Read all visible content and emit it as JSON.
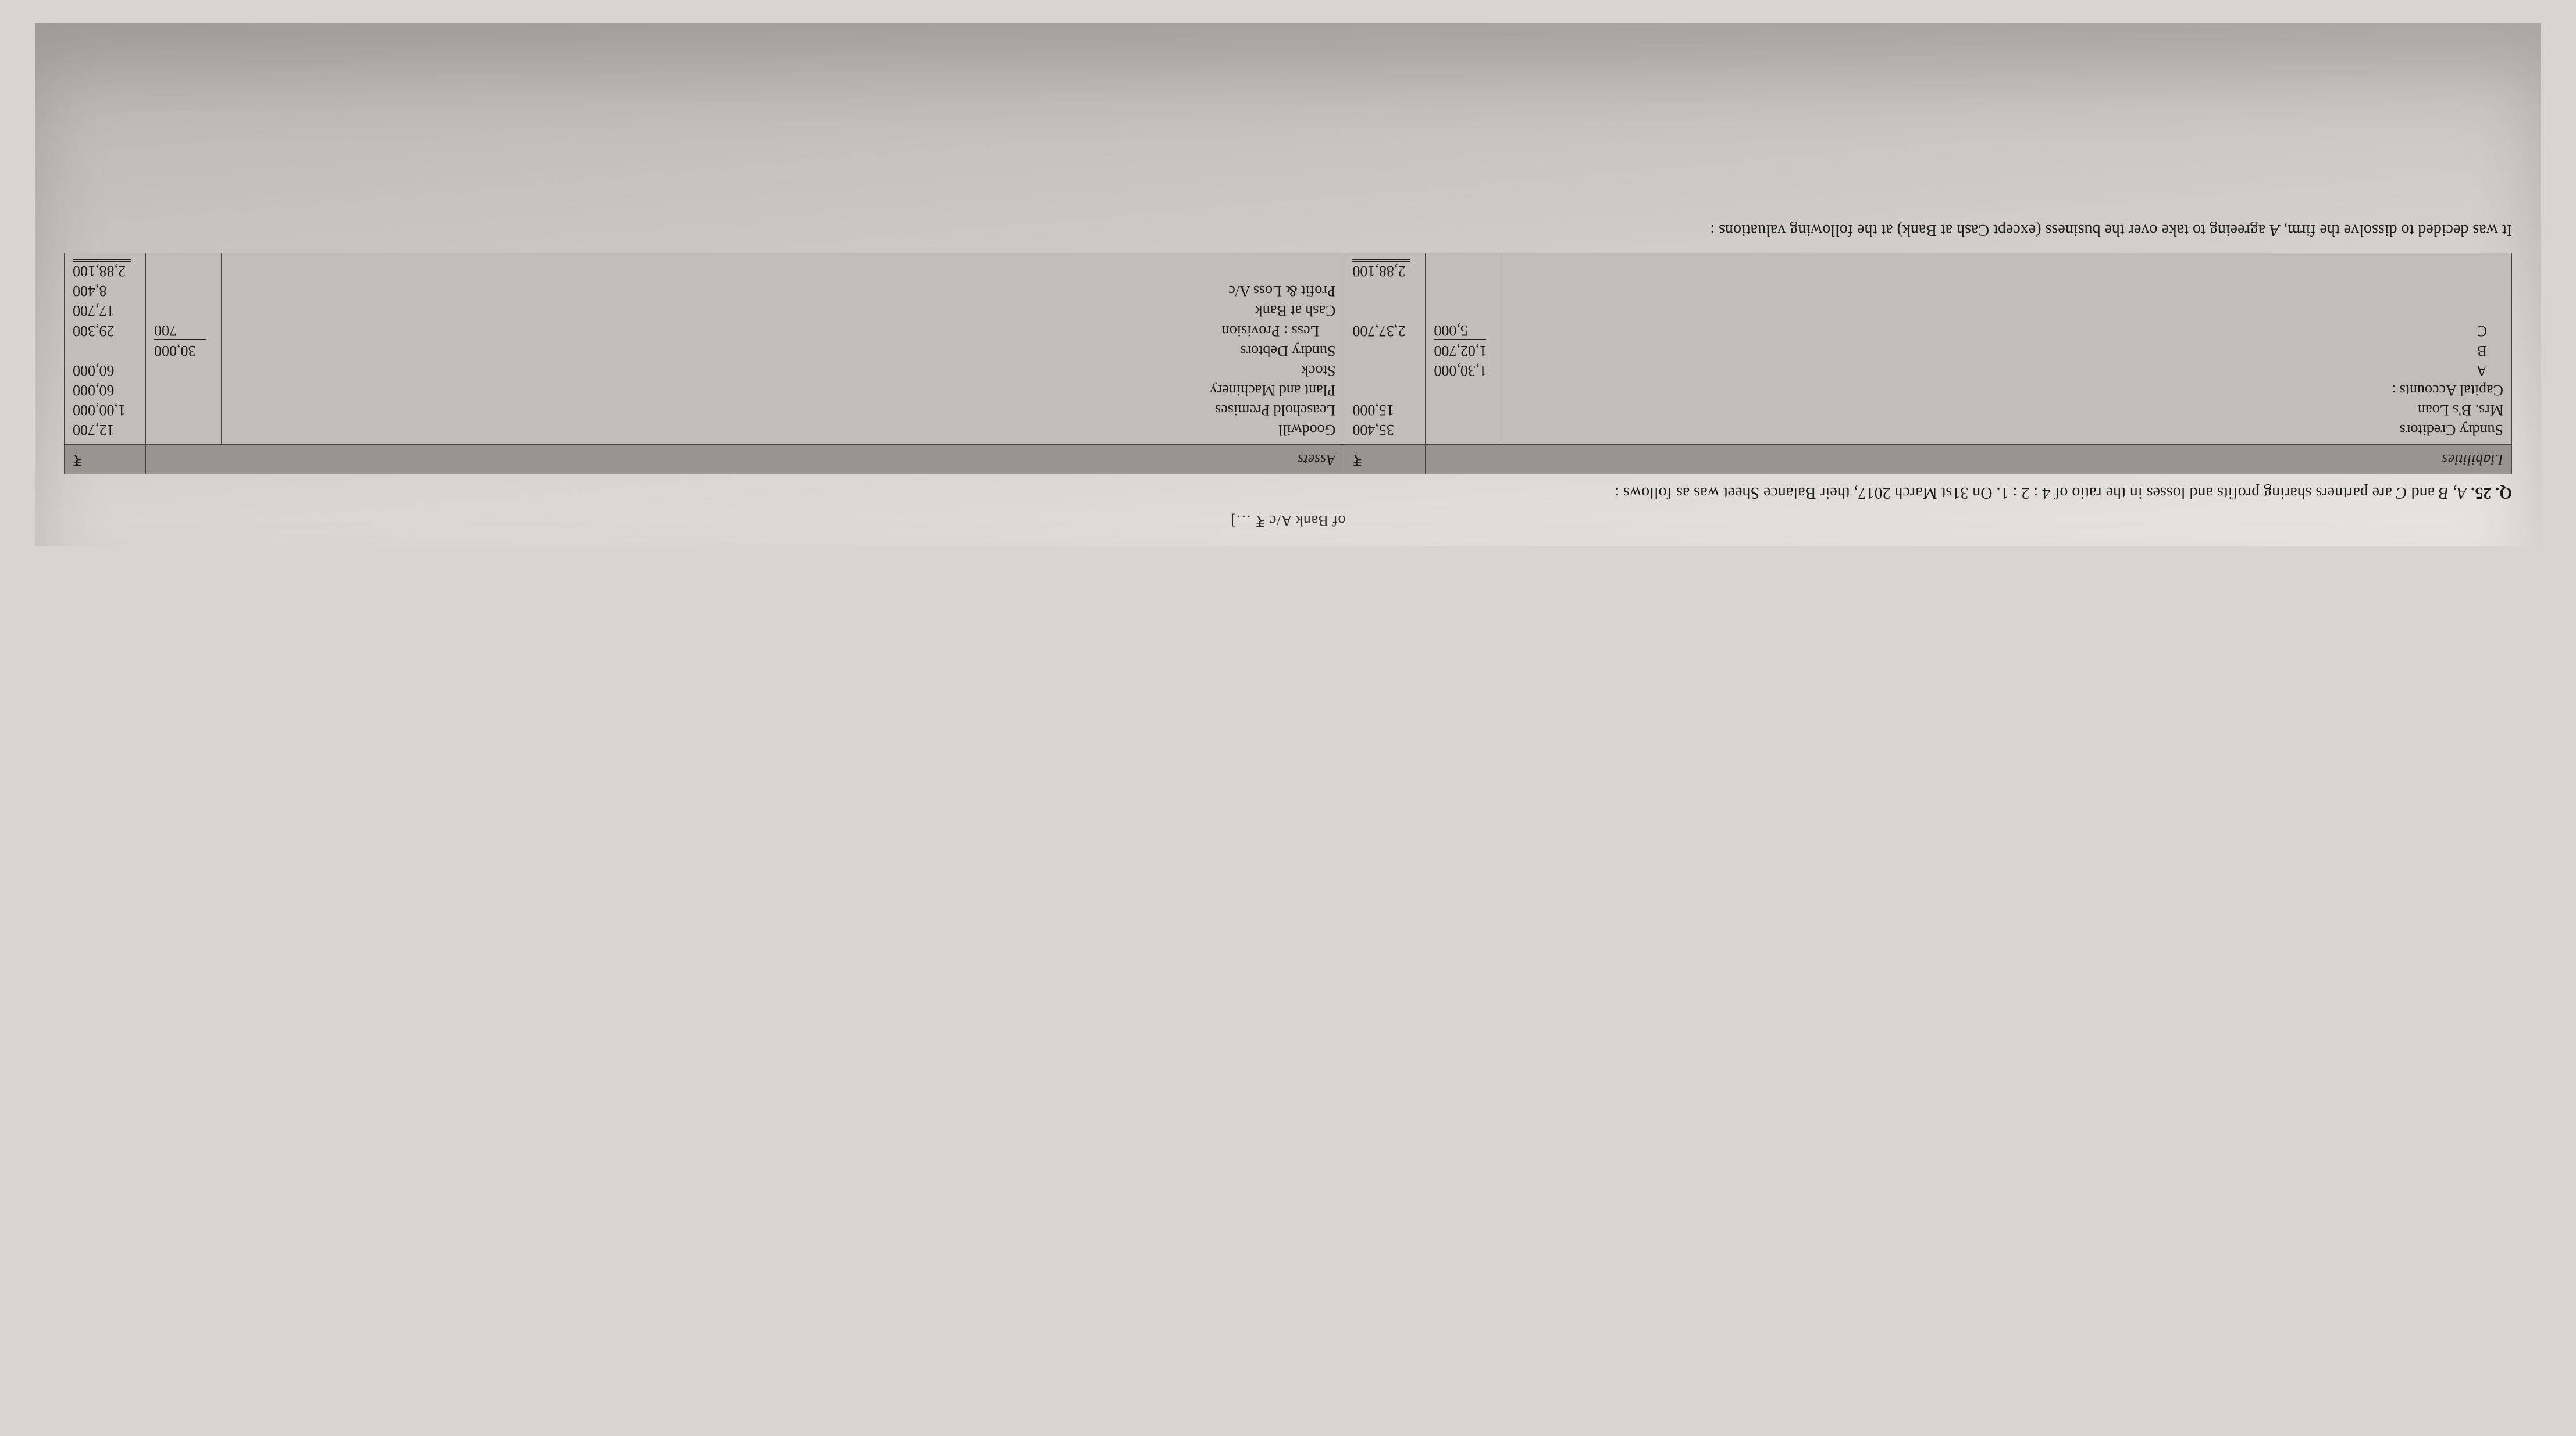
{
  "colors": {
    "page_bg_top": "#e8e4e0",
    "page_bg_bottom": "#b8b4b0",
    "table_header_bg": "#999490",
    "table_body_bg": "#c2bdb8",
    "rule": "#444444",
    "text": "#1a1a1a"
  },
  "typography": {
    "body_font": "Times New Roman",
    "body_size_pt": 14,
    "line_height": 1.5
  },
  "top_fragment": "of Bank A/c ₹ …]",
  "question": {
    "number": "Q. 25.",
    "body_pre_em1": " ",
    "em1": "A, B",
    "mid1": " and ",
    "em2": "C",
    "mid2": " are partners sharing profits and losses in the ratio of 4 : 2 : 1. On 31st March 2017, their Balance Sheet was as follows :"
  },
  "balance_sheet": {
    "headers": {
      "liabilities": "Liabilities",
      "rupee": "₹",
      "assets": "Assets"
    },
    "liabilities": [
      {
        "label": "Sundry Creditors",
        "sub": "",
        "amount": "35,400"
      },
      {
        "label": "Mrs. B's Loan",
        "label_em_idx": [
          5,
          6
        ],
        "sub": "",
        "amount": "15,000"
      },
      {
        "label": "Capital Accounts :",
        "sub": "",
        "amount": ""
      },
      {
        "label": "A",
        "indent": 1,
        "em": true,
        "sub": "1,30,000",
        "amount": ""
      },
      {
        "label": "B",
        "indent": 1,
        "em": true,
        "sub": "1,02,700",
        "amount": ""
      },
      {
        "label": "C",
        "indent": 1,
        "em": true,
        "sub": "5,000",
        "sub_rule": "top",
        "amount": "2,37,700"
      },
      {
        "label": "",
        "sub": "",
        "amount": ""
      },
      {
        "label": "",
        "sub": "",
        "amount": ""
      },
      {
        "label": "",
        "sub": "",
        "amount": "2,88,100",
        "total": true
      }
    ],
    "assets": [
      {
        "label": "Goodwill",
        "sub": "",
        "amount": "12,700"
      },
      {
        "label": "Leasehold Premises",
        "sub": "",
        "amount": "1,00,000"
      },
      {
        "label": "Plant and Machinery",
        "sub": "",
        "amount": "60,000"
      },
      {
        "label": "Stock",
        "sub": "",
        "amount": "60,000"
      },
      {
        "label": "Sundry Debtors",
        "sub": "30,000",
        "amount": ""
      },
      {
        "label": "Less : Provision",
        "indent": 1,
        "em": true,
        "sub": "700",
        "sub_rule": "top",
        "amount": "29,300"
      },
      {
        "label": "Cash at Bank",
        "sub": "",
        "amount": "17,700"
      },
      {
        "label": "Profit & Loss A/c",
        "sub": "",
        "amount": "8,400"
      },
      {
        "label": "",
        "sub": "",
        "amount": "2,88,100",
        "total": true
      }
    ]
  },
  "post_text": {
    "line1_pre": "It was decided to dissolve the firm, ",
    "line1_em": "A",
    "line1_post": " agreeing to take over the business (except Cash at Bank) at the following valuations :"
  }
}
